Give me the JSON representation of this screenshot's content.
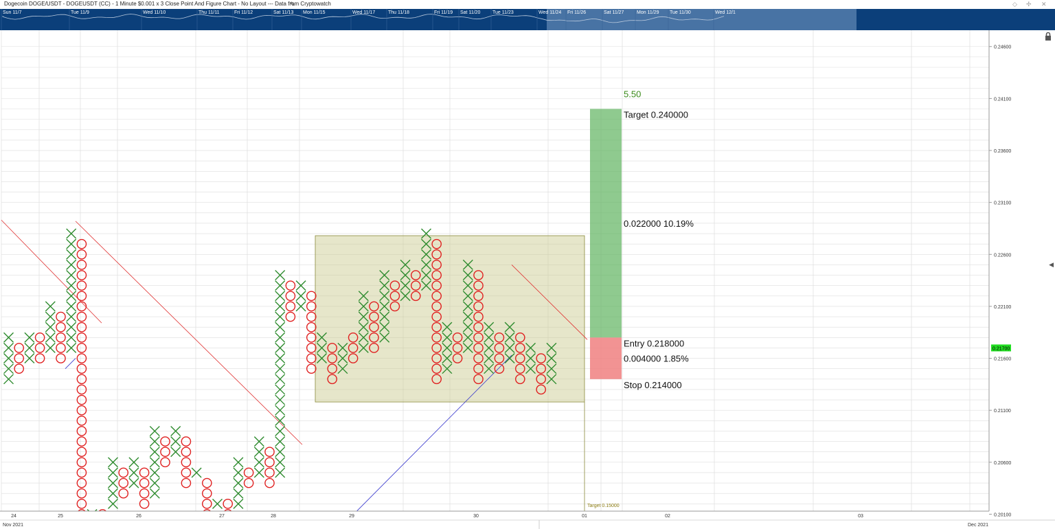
{
  "title": "Dogecoin DOGE/USDT - DOGEUSDT (CC) - 1 Minute $0.001 x 3 Close Point And Figure Chart - No Layout --- Data from Cryptowatch",
  "icons": {
    "edit": "pencil-icon",
    "lock": "lock-icon",
    "collapse": "chevron-left-icon",
    "diamond": "diamond-icon",
    "pin": "pin-icon",
    "close": "close-icon"
  },
  "colors": {
    "x_color": "#2e8b2e",
    "o_color": "#e02020",
    "overview_bg": "#0b3f7a",
    "target_zone": "#5fb35f",
    "stop_zone": "#f08080",
    "congestion_box": "#c8c88a",
    "last_price_bg": "#22dd22",
    "trend_red": "#e03030",
    "trend_blue": "#3333cc"
  },
  "overview": {
    "labels": [
      "Sun 11/7",
      "Tue 11/9",
      "Wed 11/10",
      "Thu 11/11",
      "Fri 11/12",
      "Sat 11/13",
      "Mon 11/15",
      "Wed 11/17",
      "Thu 11/18",
      "Fri 11/19",
      "Sat 11/20",
      "Tue 11/23",
      "Wed 11/24",
      "Fri 11/26",
      "Sat 11/27",
      "Mon 11/29",
      "Tue 11/30",
      "Wed 12/1"
    ]
  },
  "chart_data": {
    "type": "point-and-figure",
    "box_size": 0.001,
    "reversal": 3,
    "ylim": [
      0.201,
      0.246
    ],
    "y_ticks": [
      "0.24600",
      "0.24100",
      "0.23600",
      "0.23100",
      "0.22600",
      "0.22100",
      "0.21600",
      "0.21100",
      "0.20600",
      "0.20100"
    ],
    "x_ticks": [
      "24",
      "25",
      "26",
      "27",
      "28",
      "29",
      "30",
      "01",
      "02",
      "03"
    ],
    "x_month_labels": [
      "Nov 2021",
      "Dec 2021"
    ],
    "last_price": "0.21700",
    "columns": [
      {
        "t": "X",
        "lo": 0.214,
        "hi": 0.218
      },
      {
        "t": "O",
        "lo": 0.215,
        "hi": 0.217
      },
      {
        "t": "X",
        "lo": 0.216,
        "hi": 0.218
      },
      {
        "t": "O",
        "lo": 0.216,
        "hi": 0.218
      },
      {
        "t": "X",
        "lo": 0.217,
        "hi": 0.221
      },
      {
        "t": "O",
        "lo": 0.216,
        "hi": 0.22
      },
      {
        "t": "X",
        "lo": 0.217,
        "hi": 0.228
      },
      {
        "t": "O",
        "lo": 0.201,
        "hi": 0.227
      },
      {
        "t": "X",
        "lo": 0.201,
        "hi": 0.201
      },
      {
        "t": "O",
        "lo": 0.201,
        "hi": 0.201
      },
      {
        "t": "X",
        "lo": 0.202,
        "hi": 0.206
      },
      {
        "t": "O",
        "lo": 0.203,
        "hi": 0.205
      },
      {
        "t": "X",
        "lo": 0.204,
        "hi": 0.206
      },
      {
        "t": "O",
        "lo": 0.202,
        "hi": 0.205
      },
      {
        "t": "X",
        "lo": 0.203,
        "hi": 0.209
      },
      {
        "t": "O",
        "lo": 0.206,
        "hi": 0.208
      },
      {
        "t": "X",
        "lo": 0.207,
        "hi": 0.209
      },
      {
        "t": "O",
        "lo": 0.204,
        "hi": 0.208
      },
      {
        "t": "X",
        "lo": 0.205,
        "hi": 0.205
      },
      {
        "t": "O",
        "lo": 0.201,
        "hi": 0.204
      },
      {
        "t": "X",
        "lo": 0.202,
        "hi": 0.202
      },
      {
        "t": "O",
        "lo": 0.201,
        "hi": 0.202
      },
      {
        "t": "X",
        "lo": 0.202,
        "hi": 0.206
      },
      {
        "t": "O",
        "lo": 0.204,
        "hi": 0.205
      },
      {
        "t": "X",
        "lo": 0.205,
        "hi": 0.208
      },
      {
        "t": "O",
        "lo": 0.204,
        "hi": 0.207
      },
      {
        "t": "X",
        "lo": 0.205,
        "hi": 0.224
      },
      {
        "t": "O",
        "lo": 0.22,
        "hi": 0.223
      },
      {
        "t": "X",
        "lo": 0.221,
        "hi": 0.223
      },
      {
        "t": "O",
        "lo": 0.215,
        "hi": 0.222
      },
      {
        "t": "X",
        "lo": 0.216,
        "hi": 0.218
      },
      {
        "t": "O",
        "lo": 0.214,
        "hi": 0.217
      },
      {
        "t": "X",
        "lo": 0.215,
        "hi": 0.217
      },
      {
        "t": "O",
        "lo": 0.216,
        "hi": 0.218
      },
      {
        "t": "X",
        "lo": 0.217,
        "hi": 0.222
      },
      {
        "t": "O",
        "lo": 0.217,
        "hi": 0.221
      },
      {
        "t": "X",
        "lo": 0.218,
        "hi": 0.224
      },
      {
        "t": "O",
        "lo": 0.221,
        "hi": 0.223
      },
      {
        "t": "X",
        "lo": 0.222,
        "hi": 0.225
      },
      {
        "t": "O",
        "lo": 0.222,
        "hi": 0.224
      },
      {
        "t": "X",
        "lo": 0.223,
        "hi": 0.228
      },
      {
        "t": "O",
        "lo": 0.214,
        "hi": 0.227
      },
      {
        "t": "X",
        "lo": 0.215,
        "hi": 0.219
      },
      {
        "t": "O",
        "lo": 0.216,
        "hi": 0.218
      },
      {
        "t": "X",
        "lo": 0.217,
        "hi": 0.225
      },
      {
        "t": "O",
        "lo": 0.214,
        "hi": 0.224
      },
      {
        "t": "X",
        "lo": 0.215,
        "hi": 0.219
      },
      {
        "t": "O",
        "lo": 0.215,
        "hi": 0.218
      },
      {
        "t": "X",
        "lo": 0.216,
        "hi": 0.219
      },
      {
        "t": "O",
        "lo": 0.214,
        "hi": 0.218
      },
      {
        "t": "X",
        "lo": 0.215,
        "hi": 0.217
      },
      {
        "t": "O",
        "lo": 0.213,
        "hi": 0.216
      },
      {
        "t": "X",
        "lo": 0.214,
        "hi": 0.217
      }
    ],
    "congestion_box": {
      "low": 0.2118,
      "high": 0.2278
    },
    "position": {
      "target_count": "5.50",
      "target_label": "Target",
      "target_value": "0.240000",
      "reward_value": "0.022000",
      "reward_pct": "10.19%",
      "entry_label": "Entry",
      "entry_value": "0.218000",
      "risk_value": "0.004000",
      "risk_pct": "1.85%",
      "stop_label": "Stop",
      "stop_value": "0.214000",
      "target": 0.24,
      "entry": 0.218,
      "stop": 0.214
    },
    "bottom_target_label": "Target 0.15000"
  }
}
